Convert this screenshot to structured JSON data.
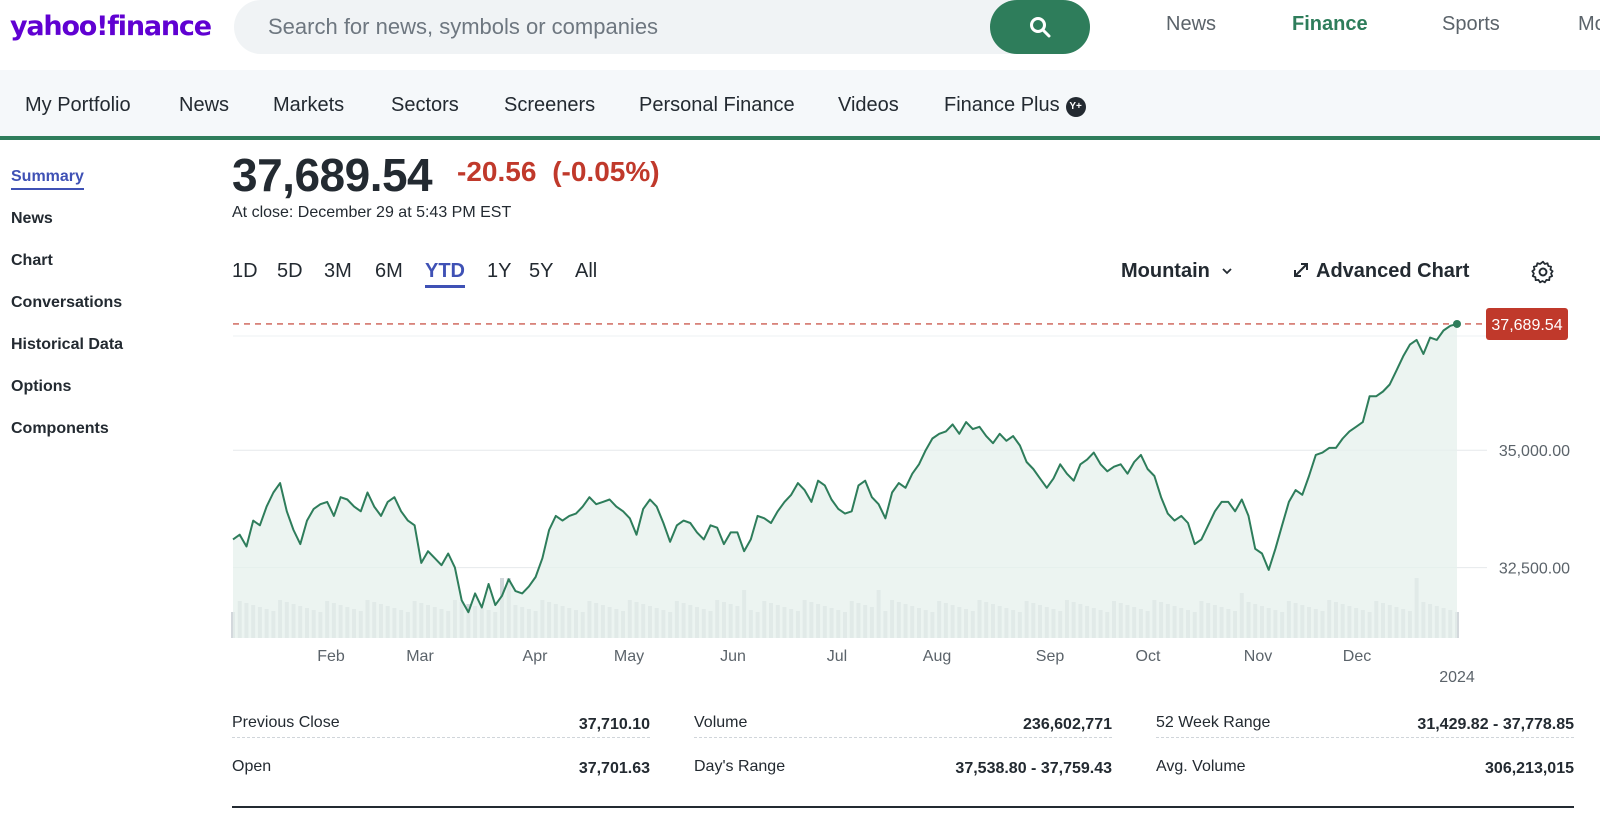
{
  "header": {
    "logo_text": "yahoo!finance",
    "search_placeholder": "Search for news, symbols or companies",
    "links": [
      "News",
      "Finance",
      "Sports",
      "Mo"
    ],
    "active_link": "Finance"
  },
  "subnav": {
    "items": [
      "My Portfolio",
      "News",
      "Markets",
      "Sectors",
      "Screeners",
      "Personal Finance",
      "Videos",
      "Finance Plus"
    ],
    "plus_badge": "Y+"
  },
  "sidemenu": {
    "items": [
      "Summary",
      "News",
      "Chart",
      "Conversations",
      "Historical Data",
      "Options",
      "Components"
    ],
    "active": "Summary"
  },
  "quote": {
    "price": "37,689.54",
    "change": "-20.56",
    "change_pct": "(-0.05%)",
    "close_text": "At close: December 29 at 5:43 PM EST"
  },
  "chart_controls": {
    "ranges": [
      "1D",
      "5D",
      "3M",
      "6M",
      "YTD",
      "1Y",
      "5Y",
      "All"
    ],
    "active_range": "YTD",
    "chart_type": "Mountain",
    "advanced_label": "Advanced Chart"
  },
  "chart_data": {
    "type": "area",
    "series": [
      {
        "values": [
          33100,
          33200,
          32950,
          33500,
          33400,
          33800,
          34100,
          34300,
          33700,
          33300,
          33000,
          33500,
          33750,
          33850,
          33900,
          33600,
          34000,
          33950,
          33800,
          33700,
          34100,
          33800,
          33600,
          33900,
          34000,
          33700,
          33500,
          33400,
          32600,
          32850,
          32700,
          32550,
          32800,
          32500,
          31800,
          31550,
          31950,
          31650,
          32150,
          31700,
          31900,
          32250,
          32000,
          31950,
          32100,
          32300,
          32700,
          33300,
          33600,
          33500,
          33600,
          33650,
          33800,
          34000,
          33850,
          33900,
          33950,
          33800,
          33700,
          33550,
          33200,
          33750,
          33950,
          33800,
          33450,
          33050,
          33400,
          33500,
          33450,
          33250,
          33100,
          33400,
          33350,
          33000,
          33250,
          33250,
          32850,
          33100,
          33600,
          33550,
          33450,
          33700,
          33900,
          34050,
          34300,
          34150,
          33900,
          34350,
          34250,
          33950,
          33750,
          33650,
          33700,
          34250,
          34350,
          34000,
          33850,
          33550,
          34100,
          34300,
          34200,
          34500,
          34700,
          35000,
          35250,
          35350,
          35400,
          35550,
          35350,
          35600,
          35450,
          35500,
          35300,
          35150,
          35350,
          35200,
          35300,
          35100,
          34750,
          34600,
          34400,
          34200,
          34400,
          34700,
          34500,
          34350,
          34700,
          34800,
          34950,
          34700,
          34550,
          34650,
          34700,
          34500,
          34750,
          34900,
          34600,
          34450,
          34000,
          33650,
          33500,
          33600,
          33450,
          33000,
          33100,
          33400,
          33700,
          33900,
          33900,
          33700,
          33950,
          33600,
          32900,
          32800,
          32450,
          32900,
          33400,
          33900,
          34150,
          34050,
          34450,
          34900,
          34950,
          35050,
          35050,
          35250,
          35400,
          35500,
          35600,
          36150,
          36150,
          36250,
          36400,
          36700,
          37000,
          37250,
          37350,
          37050,
          37400,
          37350,
          37550,
          37650,
          37690
        ],
        "volume_note": "daily volume bars"
      }
    ],
    "x_tick_labels": [
      "Feb",
      "Mar",
      "Apr",
      "May",
      "Jun",
      "Jul",
      "Aug",
      "Sep",
      "Oct",
      "Nov",
      "Dec"
    ],
    "year_label": "2024",
    "y_tick_labels": [
      "35,000.00",
      "32,500.00"
    ],
    "y_ticks": [
      35000,
      32500
    ],
    "ylim": [
      31000,
      38200
    ],
    "last_value_label": "37,689.54",
    "colors": {
      "line": "#2e7d5b",
      "fill": "#e6f0ec",
      "last_label_bg": "#c0392b",
      "volume": "#d3d8dc"
    }
  },
  "stats": {
    "col1": [
      {
        "label": "Previous Close",
        "value": "37,710.10"
      },
      {
        "label": "Open",
        "value": "37,701.63"
      }
    ],
    "col2": [
      {
        "label": "Volume",
        "value": "236,602,771"
      },
      {
        "label": "Day's Range",
        "value": "37,538.80 - 37,759.43"
      }
    ],
    "col3": [
      {
        "label": "52 Week Range",
        "value": "31,429.82 - 37,778.85"
      },
      {
        "label": "Avg. Volume",
        "value": "306,213,015"
      }
    ]
  }
}
